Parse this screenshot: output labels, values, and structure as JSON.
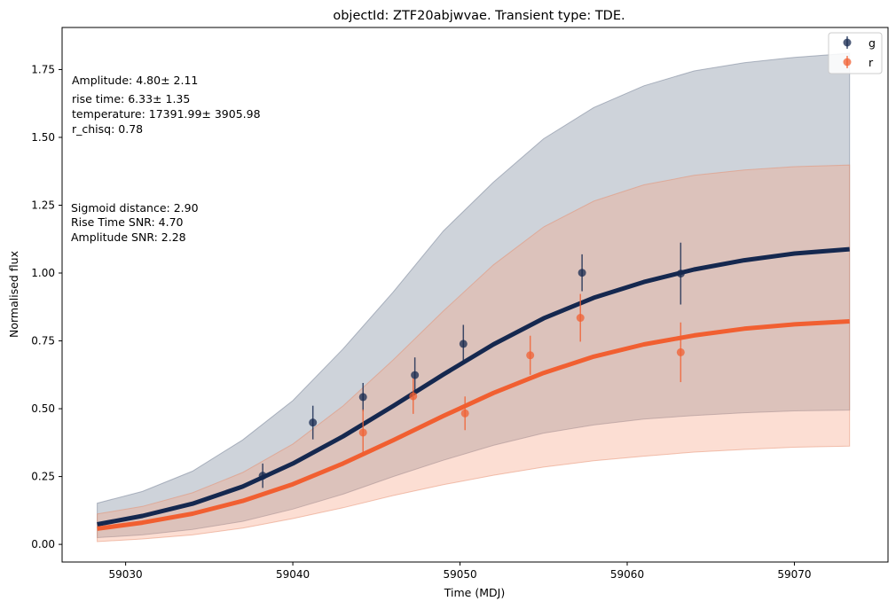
{
  "chart_data": {
    "type": "line",
    "title": "objectId: ZTF20abjwvae. Transient type: TDE.",
    "xlabel": "Time (MDJ)",
    "ylabel": "Normalised flux",
    "xlim": [
      59026.2,
      59075.6
    ],
    "ylim": [
      -0.065,
      1.905
    ],
    "x_ticks": [
      59030,
      59040,
      59050,
      59060,
      59070
    ],
    "y_ticks": [
      0.0,
      0.25,
      0.5,
      0.75,
      1.0,
      1.25,
      1.5,
      1.75
    ],
    "y_tick_labels": [
      "0.00",
      "0.25",
      "0.50",
      "0.75",
      "1.00",
      "1.25",
      "1.50",
      "1.75"
    ],
    "grid": false,
    "legend_position": "top-right",
    "annotations": {
      "fit_params": [
        "Amplitude: 4.80± 2.11",
        "rise time: 6.33± 1.35",
        "temperature: 17391.99± 3905.98",
        "r_chisq: 0.78"
      ],
      "metrics": [
        "Sigmoid distance: 2.90",
        "Rise Time SNR: 4.70",
        "Amplitude SNR: 2.28"
      ]
    },
    "colors": {
      "g": "#15284f",
      "r": "#f15f31"
    },
    "series": [
      {
        "name": "g",
        "points": [
          {
            "x": 59038.2,
            "y": 0.253,
            "err": 0.045
          },
          {
            "x": 59041.2,
            "y": 0.449,
            "err": 0.062
          },
          {
            "x": 59044.2,
            "y": 0.543,
            "err": 0.052
          },
          {
            "x": 59047.3,
            "y": 0.624,
            "err": 0.065
          },
          {
            "x": 59050.2,
            "y": 0.739,
            "err": 0.07
          },
          {
            "x": 59057.3,
            "y": 1.001,
            "err": 0.068
          },
          {
            "x": 59063.2,
            "y": 0.998,
            "err": 0.114
          }
        ],
        "fit": [
          {
            "x": 59028.3,
            "y": 0.074
          },
          {
            "x": 59031,
            "y": 0.105
          },
          {
            "x": 59034,
            "y": 0.15
          },
          {
            "x": 59037,
            "y": 0.213
          },
          {
            "x": 59040,
            "y": 0.298
          },
          {
            "x": 59043,
            "y": 0.398
          },
          {
            "x": 59046,
            "y": 0.51
          },
          {
            "x": 59049,
            "y": 0.626
          },
          {
            "x": 59052,
            "y": 0.737
          },
          {
            "x": 59055,
            "y": 0.833
          },
          {
            "x": 59058,
            "y": 0.909
          },
          {
            "x": 59061,
            "y": 0.967
          },
          {
            "x": 59064,
            "y": 1.013
          },
          {
            "x": 59067,
            "y": 1.047
          },
          {
            "x": 59070,
            "y": 1.072
          },
          {
            "x": 59073.3,
            "y": 1.088
          }
        ],
        "band": [
          {
            "x": 59028.3,
            "lo": 0.025,
            "hi": 0.152
          },
          {
            "x": 59031,
            "lo": 0.035,
            "hi": 0.195
          },
          {
            "x": 59034,
            "lo": 0.055,
            "hi": 0.27
          },
          {
            "x": 59037,
            "lo": 0.085,
            "hi": 0.385
          },
          {
            "x": 59040,
            "lo": 0.13,
            "hi": 0.53
          },
          {
            "x": 59043,
            "lo": 0.185,
            "hi": 0.72
          },
          {
            "x": 59046,
            "lo": 0.25,
            "hi": 0.93
          },
          {
            "x": 59049,
            "lo": 0.31,
            "hi": 1.155
          },
          {
            "x": 59052,
            "lo": 0.365,
            "hi": 1.335
          },
          {
            "x": 59055,
            "lo": 0.41,
            "hi": 1.495
          },
          {
            "x": 59058,
            "lo": 0.44,
            "hi": 1.61
          },
          {
            "x": 59061,
            "lo": 0.462,
            "hi": 1.69
          },
          {
            "x": 59064,
            "lo": 0.475,
            "hi": 1.745
          },
          {
            "x": 59067,
            "lo": 0.485,
            "hi": 1.775
          },
          {
            "x": 59070,
            "lo": 0.492,
            "hi": 1.795
          },
          {
            "x": 59073.3,
            "lo": 0.495,
            "hi": 1.81
          }
        ]
      },
      {
        "name": "r",
        "points": [
          {
            "x": 59044.2,
            "y": 0.412,
            "err": 0.085
          },
          {
            "x": 59047.2,
            "y": 0.546,
            "err": 0.065
          },
          {
            "x": 59050.3,
            "y": 0.483,
            "err": 0.062
          },
          {
            "x": 59054.2,
            "y": 0.697,
            "err": 0.072
          },
          {
            "x": 59057.2,
            "y": 0.835,
            "err": 0.088
          },
          {
            "x": 59063.2,
            "y": 0.708,
            "err": 0.11
          }
        ],
        "fit": [
          {
            "x": 59028.3,
            "y": 0.058
          },
          {
            "x": 59031,
            "y": 0.08
          },
          {
            "x": 59034,
            "y": 0.113
          },
          {
            "x": 59037,
            "y": 0.16
          },
          {
            "x": 59040,
            "y": 0.222
          },
          {
            "x": 59043,
            "y": 0.298
          },
          {
            "x": 59046,
            "y": 0.384
          },
          {
            "x": 59049,
            "y": 0.473
          },
          {
            "x": 59052,
            "y": 0.558
          },
          {
            "x": 59055,
            "y": 0.632
          },
          {
            "x": 59058,
            "y": 0.692
          },
          {
            "x": 59061,
            "y": 0.737
          },
          {
            "x": 59064,
            "y": 0.77
          },
          {
            "x": 59067,
            "y": 0.795
          },
          {
            "x": 59070,
            "y": 0.811
          },
          {
            "x": 59073.3,
            "y": 0.822
          }
        ],
        "band": [
          {
            "x": 59028.3,
            "lo": 0.01,
            "hi": 0.112
          },
          {
            "x": 59031,
            "lo": 0.02,
            "hi": 0.14
          },
          {
            "x": 59034,
            "lo": 0.035,
            "hi": 0.19
          },
          {
            "x": 59037,
            "lo": 0.06,
            "hi": 0.265
          },
          {
            "x": 59040,
            "lo": 0.095,
            "hi": 0.37
          },
          {
            "x": 59043,
            "lo": 0.135,
            "hi": 0.51
          },
          {
            "x": 59046,
            "lo": 0.18,
            "hi": 0.68
          },
          {
            "x": 59049,
            "lo": 0.22,
            "hi": 0.86
          },
          {
            "x": 59052,
            "lo": 0.255,
            "hi": 1.03
          },
          {
            "x": 59055,
            "lo": 0.285,
            "hi": 1.17
          },
          {
            "x": 59058,
            "lo": 0.308,
            "hi": 1.265
          },
          {
            "x": 59061,
            "lo": 0.325,
            "hi": 1.325
          },
          {
            "x": 59064,
            "lo": 0.34,
            "hi": 1.36
          },
          {
            "x": 59067,
            "lo": 0.35,
            "hi": 1.38
          },
          {
            "x": 59070,
            "lo": 0.358,
            "hi": 1.392
          },
          {
            "x": 59073.3,
            "lo": 0.362,
            "hi": 1.398
          }
        ]
      }
    ]
  }
}
